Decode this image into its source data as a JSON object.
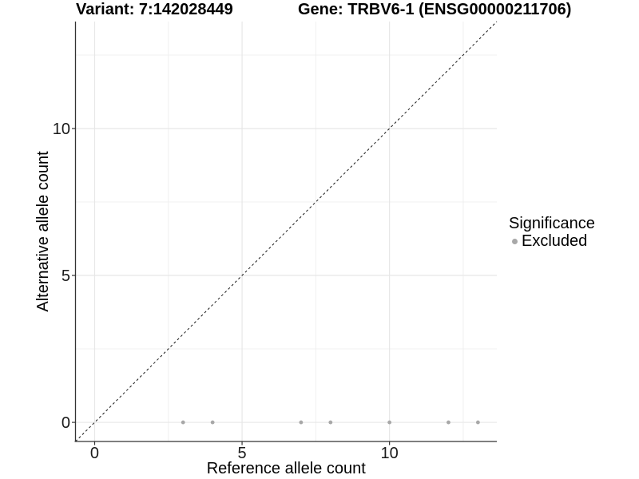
{
  "titles": {
    "variant": "Variant: 7:142028449",
    "gene": "Gene: TRBV6-1 (ENSG00000211706)"
  },
  "legend": {
    "title": "Significance",
    "items": [
      {
        "label": "Excluded",
        "color": "#a8a8a8"
      }
    ]
  },
  "chart_data": {
    "type": "scatter",
    "xlabel": "Reference allele count",
    "ylabel": "Alternative allele count",
    "xlim": [
      -0.65,
      13.64
    ],
    "ylim": [
      -0.65,
      13.64
    ],
    "x_ticks_major": [
      0,
      5,
      10
    ],
    "x_ticks_minor": [
      2.5,
      7.5,
      12.5
    ],
    "y_ticks_major": [
      0,
      5,
      10
    ],
    "y_ticks_minor": [
      2.5,
      7.5,
      12.5
    ],
    "grid": true,
    "legend_position": "right",
    "series": [
      {
        "name": "Excluded",
        "color": "#a8a8a8",
        "points": [
          [
            3,
            0
          ],
          [
            4,
            0
          ],
          [
            7,
            0
          ],
          [
            8,
            0
          ],
          [
            10,
            0
          ],
          [
            12,
            0
          ],
          [
            13,
            0
          ]
        ]
      }
    ],
    "identity_line": {
      "style": "dashed",
      "color": "#1a1a1a",
      "from": [
        -0.65,
        -0.65
      ],
      "to": [
        13.64,
        13.64
      ]
    },
    "colors": {
      "grid_major": "#e7e7e7",
      "grid_minor": "#f0f0f0",
      "axis": "#333333",
      "tick_text": "#1a1a1a",
      "label_text": "#000000"
    }
  }
}
